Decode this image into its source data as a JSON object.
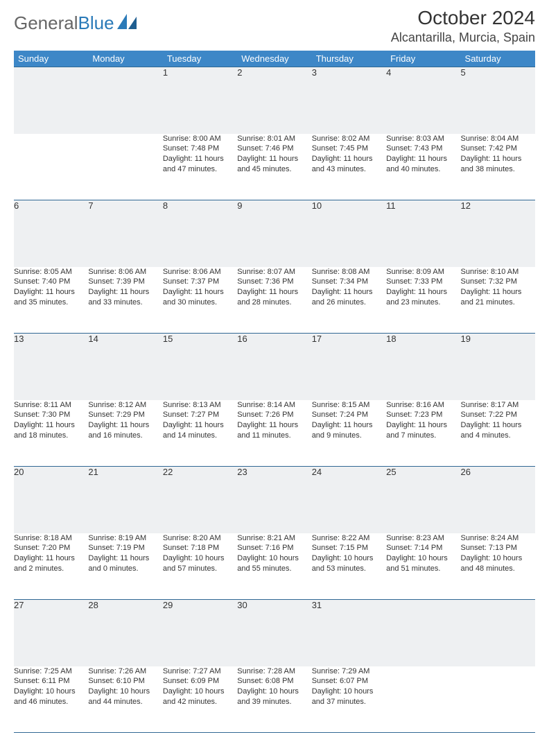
{
  "logo": {
    "word1": "General",
    "word2": "Blue"
  },
  "title": "October 2024",
  "location": "Alcantarilla, Murcia, Spain",
  "colors": {
    "header_bg": "#3d87c7",
    "header_text": "#ffffff",
    "daynum_bg": "#eef0f2",
    "rule": "#2f6793",
    "text": "#333333",
    "logo_gray": "#666666",
    "logo_blue": "#2a7ab8",
    "page_bg": "#ffffff"
  },
  "week_header": [
    "Sunday",
    "Monday",
    "Tuesday",
    "Wednesday",
    "Thursday",
    "Friday",
    "Saturday"
  ],
  "weeks": [
    [
      null,
      null,
      {
        "n": "1",
        "sr": "8:00 AM",
        "ss": "7:48 PM",
        "dl": "11 hours and 47 minutes."
      },
      {
        "n": "2",
        "sr": "8:01 AM",
        "ss": "7:46 PM",
        "dl": "11 hours and 45 minutes."
      },
      {
        "n": "3",
        "sr": "8:02 AM",
        "ss": "7:45 PM",
        "dl": "11 hours and 43 minutes."
      },
      {
        "n": "4",
        "sr": "8:03 AM",
        "ss": "7:43 PM",
        "dl": "11 hours and 40 minutes."
      },
      {
        "n": "5",
        "sr": "8:04 AM",
        "ss": "7:42 PM",
        "dl": "11 hours and 38 minutes."
      }
    ],
    [
      {
        "n": "6",
        "sr": "8:05 AM",
        "ss": "7:40 PM",
        "dl": "11 hours and 35 minutes."
      },
      {
        "n": "7",
        "sr": "8:06 AM",
        "ss": "7:39 PM",
        "dl": "11 hours and 33 minutes."
      },
      {
        "n": "8",
        "sr": "8:06 AM",
        "ss": "7:37 PM",
        "dl": "11 hours and 30 minutes."
      },
      {
        "n": "9",
        "sr": "8:07 AM",
        "ss": "7:36 PM",
        "dl": "11 hours and 28 minutes."
      },
      {
        "n": "10",
        "sr": "8:08 AM",
        "ss": "7:34 PM",
        "dl": "11 hours and 26 minutes."
      },
      {
        "n": "11",
        "sr": "8:09 AM",
        "ss": "7:33 PM",
        "dl": "11 hours and 23 minutes."
      },
      {
        "n": "12",
        "sr": "8:10 AM",
        "ss": "7:32 PM",
        "dl": "11 hours and 21 minutes."
      }
    ],
    [
      {
        "n": "13",
        "sr": "8:11 AM",
        "ss": "7:30 PM",
        "dl": "11 hours and 18 minutes."
      },
      {
        "n": "14",
        "sr": "8:12 AM",
        "ss": "7:29 PM",
        "dl": "11 hours and 16 minutes."
      },
      {
        "n": "15",
        "sr": "8:13 AM",
        "ss": "7:27 PM",
        "dl": "11 hours and 14 minutes."
      },
      {
        "n": "16",
        "sr": "8:14 AM",
        "ss": "7:26 PM",
        "dl": "11 hours and 11 minutes."
      },
      {
        "n": "17",
        "sr": "8:15 AM",
        "ss": "7:24 PM",
        "dl": "11 hours and 9 minutes."
      },
      {
        "n": "18",
        "sr": "8:16 AM",
        "ss": "7:23 PM",
        "dl": "11 hours and 7 minutes."
      },
      {
        "n": "19",
        "sr": "8:17 AM",
        "ss": "7:22 PM",
        "dl": "11 hours and 4 minutes."
      }
    ],
    [
      {
        "n": "20",
        "sr": "8:18 AM",
        "ss": "7:20 PM",
        "dl": "11 hours and 2 minutes."
      },
      {
        "n": "21",
        "sr": "8:19 AM",
        "ss": "7:19 PM",
        "dl": "11 hours and 0 minutes."
      },
      {
        "n": "22",
        "sr": "8:20 AM",
        "ss": "7:18 PM",
        "dl": "10 hours and 57 minutes."
      },
      {
        "n": "23",
        "sr": "8:21 AM",
        "ss": "7:16 PM",
        "dl": "10 hours and 55 minutes."
      },
      {
        "n": "24",
        "sr": "8:22 AM",
        "ss": "7:15 PM",
        "dl": "10 hours and 53 minutes."
      },
      {
        "n": "25",
        "sr": "8:23 AM",
        "ss": "7:14 PM",
        "dl": "10 hours and 51 minutes."
      },
      {
        "n": "26",
        "sr": "8:24 AM",
        "ss": "7:13 PM",
        "dl": "10 hours and 48 minutes."
      }
    ],
    [
      {
        "n": "27",
        "sr": "7:25 AM",
        "ss": "6:11 PM",
        "dl": "10 hours and 46 minutes."
      },
      {
        "n": "28",
        "sr": "7:26 AM",
        "ss": "6:10 PM",
        "dl": "10 hours and 44 minutes."
      },
      {
        "n": "29",
        "sr": "7:27 AM",
        "ss": "6:09 PM",
        "dl": "10 hours and 42 minutes."
      },
      {
        "n": "30",
        "sr": "7:28 AM",
        "ss": "6:08 PM",
        "dl": "10 hours and 39 minutes."
      },
      {
        "n": "31",
        "sr": "7:29 AM",
        "ss": "6:07 PM",
        "dl": "10 hours and 37 minutes."
      },
      null,
      null
    ]
  ],
  "labels": {
    "sunrise": "Sunrise:",
    "sunset": "Sunset:",
    "daylight": "Daylight:"
  }
}
